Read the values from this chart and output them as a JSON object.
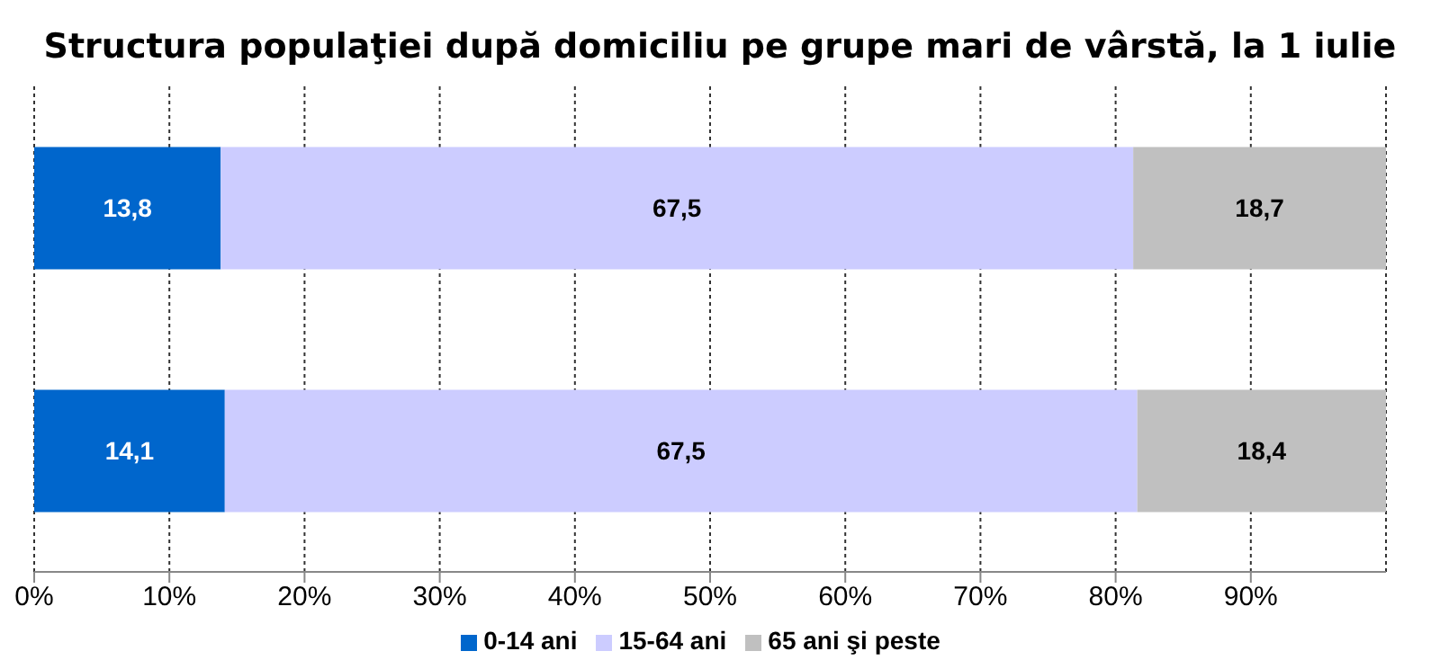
{
  "chart_data": {
    "type": "bar",
    "orientation": "horizontal",
    "stacked": true,
    "title": "Structura populaţiei după domiciliu pe grupe mari de vârstă, la 1 iulie",
    "categories": [
      null,
      null
    ],
    "series": [
      {
        "name": "0-14 ani",
        "color": "#0066cc",
        "values": [
          13.8,
          14.1
        ],
        "value_labels": [
          "13,8",
          "14,1"
        ]
      },
      {
        "name": "15-64 ani",
        "color": "#ccccff",
        "values": [
          67.5,
          67.5
        ],
        "value_labels": [
          "67,5",
          "67,5"
        ]
      },
      {
        "name": "65 ani şi peste",
        "color": "#c0c0c0",
        "values": [
          18.7,
          18.4
        ],
        "value_labels": [
          "18,7",
          "18,4"
        ]
      }
    ],
    "xlim": [
      0,
      100
    ],
    "xticks": [
      {
        "value": 0,
        "label": "0%"
      },
      {
        "value": 10,
        "label": "10%"
      },
      {
        "value": 20,
        "label": "20%"
      },
      {
        "value": 30,
        "label": "30%"
      },
      {
        "value": 40,
        "label": "40%"
      },
      {
        "value": 50,
        "label": "50%"
      },
      {
        "value": 60,
        "label": "60%"
      },
      {
        "value": 70,
        "label": "70%"
      },
      {
        "value": 80,
        "label": "80%"
      },
      {
        "value": 90,
        "label": "90%"
      }
    ],
    "grid": "x",
    "legend": "bottom"
  }
}
